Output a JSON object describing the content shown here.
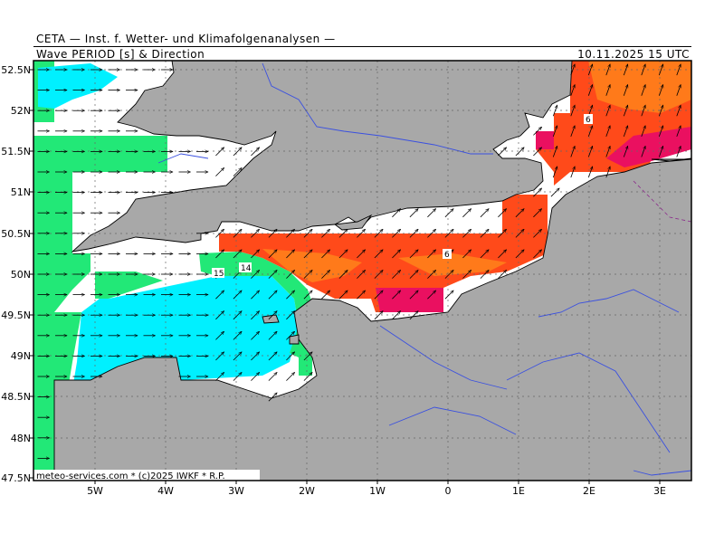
{
  "header": {
    "title": "CETA — Inst. f. Wetter- und Klimafolgenanalysen —",
    "subtitle": "Wave PERIOD [s] & Direction",
    "datetime": "10.11.2025 15 UTC"
  },
  "credit": "meteo-services.com * (c)2025 IWKF * R.P.",
  "axes": {
    "lon_labels": [
      "5W",
      "4W",
      "3W",
      "2W",
      "1W",
      "0",
      "1E",
      "2E",
      "3E"
    ],
    "lat_labels": [
      "52.5N",
      "52N",
      "51.5N",
      "51N",
      "50.5N",
      "50N",
      "49.5N",
      "49N",
      "48.5N",
      "48N",
      "47.5N"
    ],
    "lon_range": [
      -5.9,
      3.5
    ],
    "lat_range": [
      47.5,
      52.6
    ]
  },
  "contour_labels": [
    {
      "text": "15",
      "lon": -3.25,
      "lat": 50.0
    },
    {
      "text": "14",
      "lon": -2.85,
      "lat": 50.05
    },
    {
      "text": "6",
      "lon": 0.0,
      "lat": 50.25
    },
    {
      "text": "6",
      "lon": 2.0,
      "lat": 51.95
    }
  ],
  "colors": {
    "land": "#a8a8a8",
    "sea_blank": "#ffffff",
    "green": "#22e877",
    "cyan": "#00f0ff",
    "orange_red": "#ff4a1a",
    "orange": "#ff7a1a",
    "magenta": "#ea1060",
    "rivers": "#3a50e0"
  },
  "arrow_direction_deg": {
    "west_atlantic": 90,
    "channel": 45,
    "north_sea": 20
  }
}
